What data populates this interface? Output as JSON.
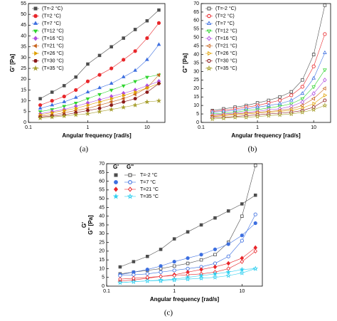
{
  "chart_data": [
    {
      "type": "line",
      "panel_label": "(a)",
      "xlabel": "Angular frequency [rad/s]",
      "ylabel": [
        "G' [Pa]"
      ],
      "xscale": "log",
      "filled": true,
      "xlim": [
        0.1,
        20
      ],
      "xticks": [
        0.1,
        1,
        10
      ],
      "ylim": [
        0,
        55
      ],
      "yticks": [
        0,
        5,
        10,
        15,
        20,
        25,
        30,
        35,
        40,
        45,
        50,
        55
      ],
      "x": [
        0.158,
        0.25,
        0.4,
        0.63,
        1,
        1.58,
        2.5,
        4,
        6.3,
        10,
        15.8
      ],
      "series": [
        {
          "name": "(T=-2 °C)",
          "color": "#4d4d4d",
          "marker": "square",
          "values": [
            11,
            14,
            17,
            21,
            27,
            31,
            35,
            39,
            43,
            47,
            52
          ]
        },
        {
          "name": "(T=2 °C)",
          "color": "#e8262a",
          "marker": "circle",
          "values": [
            8,
            10,
            12,
            15,
            19,
            22,
            25,
            29,
            33,
            39,
            46
          ]
        },
        {
          "name": "(T=7 °C)",
          "color": "#3d6fe0",
          "marker": "tri-up",
          "values": [
            6.5,
            8,
            9.5,
            11.5,
            14,
            16,
            18,
            21,
            24,
            29,
            36
          ]
        },
        {
          "name": "(T=12 °C)",
          "color": "#2ed42e",
          "marker": "tri-down",
          "values": [
            5,
            6,
            7.5,
            9,
            11,
            13,
            15,
            17,
            19,
            21,
            22
          ]
        },
        {
          "name": "(T=16 °C)",
          "color": "#b04fe0",
          "marker": "diamond",
          "values": [
            4,
            5,
            6,
            7.5,
            9,
            10.5,
            12,
            13.5,
            15,
            17,
            19
          ]
        },
        {
          "name": "(T=21 °C)",
          "color": "#c8641e",
          "marker": "tri-left",
          "values": [
            3,
            3.5,
            4.5,
            5.5,
            6.5,
            8,
            9.5,
            11,
            13,
            16,
            22
          ]
        },
        {
          "name": "(T=26 °C)",
          "color": "#e0a000",
          "marker": "tri-right",
          "values": [
            3.5,
            4.5,
            5.5,
            6.5,
            8,
            9.5,
            11,
            12.5,
            14,
            16,
            18
          ]
        },
        {
          "name": "(T=30 °C)",
          "color": "#8b1a1a",
          "marker": "hexagon",
          "values": [
            2.5,
            3,
            3.5,
            4.5,
            5.5,
            6.5,
            8,
            9.5,
            11,
            14,
            18
          ]
        },
        {
          "name": "(T=35 °C)",
          "color": "#a8a030",
          "marker": "star",
          "values": [
            2,
            2.5,
            3,
            3.5,
            4,
            5,
            6,
            7,
            8,
            9.5,
            10
          ]
        }
      ]
    },
    {
      "type": "line",
      "panel_label": "(b)",
      "xlabel": "Angular frequency [rad/s]",
      "ylabel": [
        "G'' [Pa]"
      ],
      "xscale": "log",
      "filled": false,
      "xlim": [
        0.1,
        20
      ],
      "xticks": [
        0.1,
        1,
        10
      ],
      "ylim": [
        0,
        70
      ],
      "yticks": [
        0,
        5,
        10,
        15,
        20,
        25,
        30,
        35,
        40,
        45,
        50,
        55,
        60,
        65,
        70
      ],
      "x": [
        0.158,
        0.25,
        0.4,
        0.63,
        1,
        1.58,
        2.5,
        4,
        6.3,
        10,
        15.8
      ],
      "series": [
        {
          "name": "(T=-2 °C)",
          "color": "#4d4d4d",
          "marker": "square",
          "values": [
            7,
            8,
            9,
            10,
            11.5,
            13,
            15,
            18,
            25,
            40,
            69
          ]
        },
        {
          "name": "(T=2 °C)",
          "color": "#e8262a",
          "marker": "circle",
          "values": [
            6.5,
            7,
            8,
            9,
            10,
            11.5,
            13,
            16,
            21,
            33,
            52
          ]
        },
        {
          "name": "(T=7 °C)",
          "color": "#3d6fe0",
          "marker": "tri-up",
          "values": [
            6,
            6.5,
            7,
            8,
            9,
            10,
            11,
            13,
            17,
            26,
            41
          ]
        },
        {
          "name": "(T=12 °C)",
          "color": "#2ed42e",
          "marker": "tri-down",
          "values": [
            5,
            5.5,
            6,
            7,
            7.5,
            8.5,
            9.5,
            11,
            14,
            21,
            31
          ]
        },
        {
          "name": "(T=16 °C)",
          "color": "#b04fe0",
          "marker": "diamond",
          "values": [
            4.5,
            5,
            5.5,
            6,
            6.5,
            7.5,
            8,
            9.5,
            12,
            17,
            25
          ]
        },
        {
          "name": "(T=21 °C)",
          "color": "#c8641e",
          "marker": "tri-left",
          "values": [
            4,
            4.5,
            5,
            5.5,
            6,
            6.5,
            7,
            8,
            10,
            14,
            20
          ]
        },
        {
          "name": "(T=26 °C)",
          "color": "#e0a000",
          "marker": "tri-right",
          "values": [
            3.5,
            4,
            4.5,
            5,
            5.5,
            6,
            6.5,
            7,
            8.5,
            11,
            16
          ]
        },
        {
          "name": "(T=30 °C)",
          "color": "#8b1a1a",
          "marker": "hexagon",
          "values": [
            3,
            3,
            3.5,
            4,
            4.5,
            5,
            5.5,
            6,
            7,
            9,
            13
          ]
        },
        {
          "name": "(T=35 °C)",
          "color": "#a8a030",
          "marker": "star",
          "values": [
            2,
            2.5,
            3,
            3,
            3.5,
            4,
            4.5,
            5,
            6,
            7.5,
            10
          ]
        }
      ]
    },
    {
      "type": "line",
      "panel_label": "(c)",
      "xlabel": "Angular frequency [rad/s]",
      "ylabel": [
        "G'",
        "G'' [Pa]"
      ],
      "xscale": "log",
      "legend_header": [
        "G'",
        "G''"
      ],
      "xlim": [
        0.1,
        20
      ],
      "xticks": [
        0.1,
        1,
        10
      ],
      "ylim": [
        0,
        70
      ],
      "yticks": [
        0,
        5,
        10,
        15,
        20,
        25,
        30,
        35,
        40,
        45,
        50,
        55,
        60,
        65,
        70
      ],
      "x": [
        0.158,
        0.25,
        0.4,
        0.63,
        1,
        1.58,
        2.5,
        4,
        6.3,
        10,
        15.8
      ],
      "series": [
        {
          "name": "T=-2 °C",
          "color": "#4d4d4d",
          "marker": "square",
          "values": [
            11,
            14,
            17,
            21,
            27,
            31,
            35,
            39,
            43,
            47,
            52
          ],
          "values_loss": [
            7,
            8,
            9,
            10,
            11.5,
            13,
            15,
            18,
            25,
            40,
            69
          ]
        },
        {
          "name": "T=7 °C",
          "color": "#3d6fe0",
          "marker": "circle",
          "values": [
            6.5,
            8,
            9.5,
            11.5,
            14,
            16,
            18,
            21,
            24,
            29,
            36
          ],
          "values_loss": [
            6,
            6.5,
            7,
            8,
            9,
            10,
            11,
            13,
            17,
            26,
            41
          ]
        },
        {
          "name": "T=21 °C",
          "color": "#e8262a",
          "marker": "diamond",
          "values": [
            3,
            3.5,
            4.5,
            5.5,
            6.5,
            8,
            9.5,
            11,
            13,
            16,
            22
          ],
          "values_loss": [
            4,
            4.5,
            5,
            5.5,
            6,
            6.5,
            7,
            8,
            10,
            14,
            20
          ]
        },
        {
          "name": "T=35 °C",
          "color": "#33d0f0",
          "marker": "star",
          "values": [
            2,
            2.5,
            3,
            3.5,
            4,
            5,
            6,
            7,
            8,
            9.5,
            10
          ],
          "values_loss": [
            2,
            2.5,
            3,
            3,
            3.5,
            4,
            4.5,
            5,
            6,
            7.5,
            10
          ]
        }
      ]
    }
  ]
}
